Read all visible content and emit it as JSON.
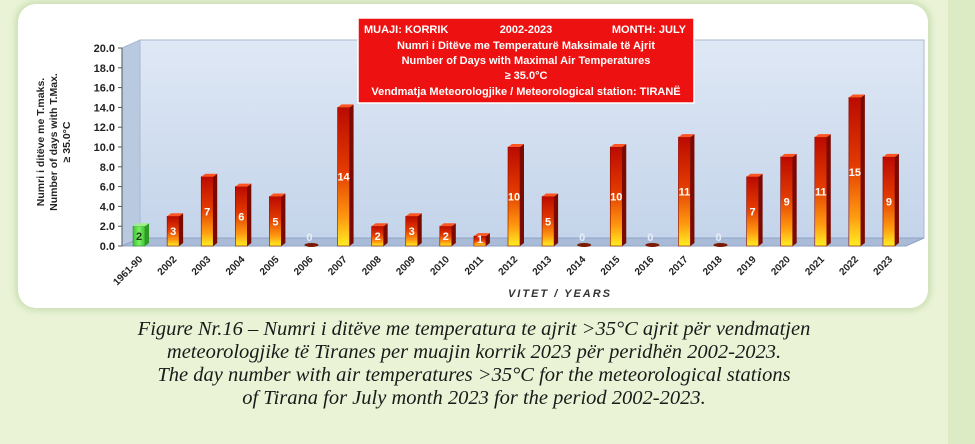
{
  "chart_data": {
    "type": "bar",
    "title_lines": {
      "line1_left": "MUAJI: KORRIK",
      "line1_mid": "2002-2023",
      "line1_right": "MONTH: JULY",
      "line2": "Numri i Ditëve me Temperaturë Maksimale të Ajrit",
      "line3": "Number of Days with Maximal Air Temperatures",
      "line4": "≥ 35.0°C",
      "line5": "Vendmatja Meteorologjike / Meteorological station: TIRANË"
    },
    "ylabel_lines": [
      "Numri i ditëve me T.maks.",
      "Number of days with T.Max.",
      "≥ 35.0°C"
    ],
    "xlabel": "VITET / YEARS",
    "ylim": [
      0,
      20
    ],
    "yticks": [
      "0.0",
      "2.0",
      "4.0",
      "6.0",
      "8.0",
      "10.0",
      "12.0",
      "14.0",
      "16.0",
      "18.0",
      "20.0"
    ],
    "categories": [
      "1961-90",
      "2002",
      "2003",
      "2004",
      "2005",
      "2006",
      "2007",
      "2008",
      "2009",
      "2010",
      "2011",
      "2012",
      "2013",
      "2014",
      "2015",
      "2016",
      "2017",
      "2018",
      "2019",
      "2020",
      "2021",
      "2022",
      "2023"
    ],
    "values": [
      2,
      3,
      7,
      6,
      5,
      0,
      14,
      2,
      3,
      2,
      1,
      10,
      5,
      0,
      10,
      0,
      11,
      0,
      7,
      9,
      11,
      15,
      9
    ],
    "value_labels": [
      "2",
      "3",
      "7",
      "6",
      "5",
      "0",
      "14",
      "2",
      "3",
      "2",
      "1",
      "10",
      "5",
      "0",
      "10",
      "0",
      "11",
      "0",
      "7",
      "9",
      "11",
      "15",
      "9"
    ],
    "colors": {
      "reference_bar": "#55dd44",
      "bar_top": "#cc1100",
      "bar_bottom": "#ffee22",
      "title_box": "#ee1111",
      "wall": "#cfdcf0"
    },
    "grid": false
  },
  "caption": {
    "line1": "Figure Nr.16 – Numri i ditëve me temperatura te ajrit >35°C ajrit për vendmatjen",
    "line2": "meteorologjike të Tiranes per muajin korrik 2023 për peridhën 2002-2023.",
    "line3": "The day number with air temperatures >35°C for the meteorological stations",
    "line4": "of Tirana for July month 2023 for the period 2002-2023."
  }
}
